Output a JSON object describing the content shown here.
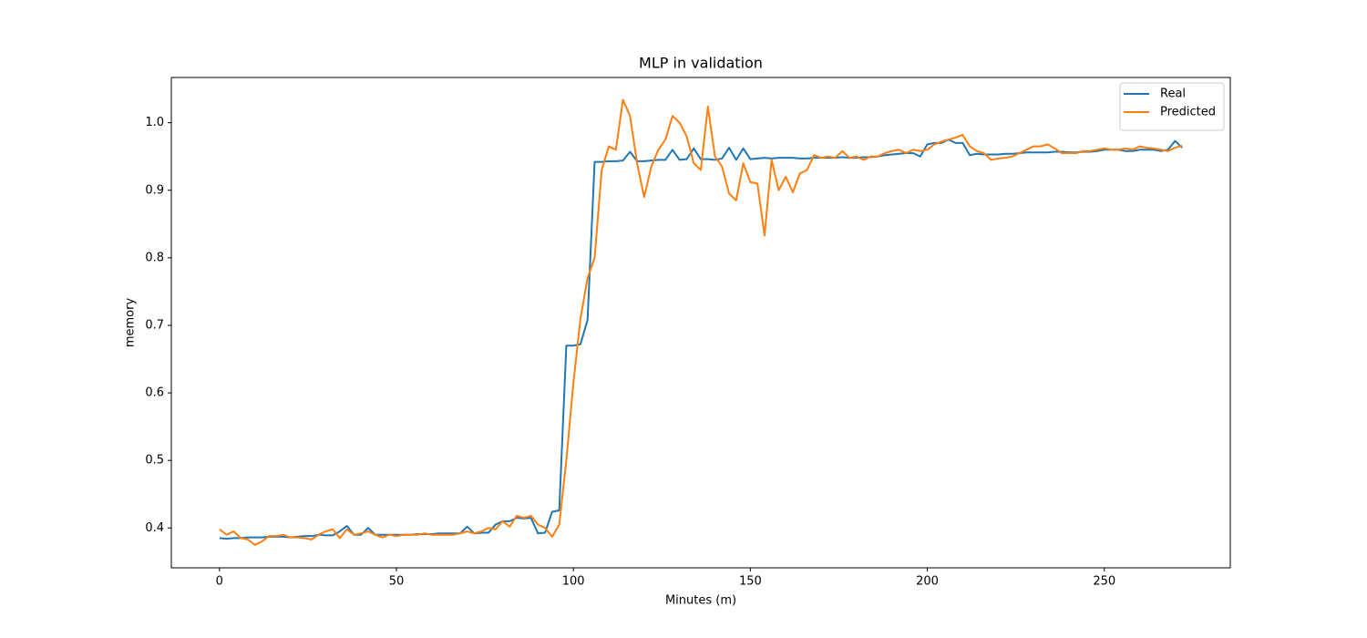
{
  "chart_data": {
    "type": "line",
    "title": "MLP in validation",
    "xlabel": "Minutes (m)",
    "ylabel": "memory",
    "x": [
      0,
      2,
      4,
      6,
      8,
      10,
      12,
      14,
      16,
      18,
      20,
      22,
      24,
      26,
      28,
      30,
      32,
      34,
      36,
      38,
      40,
      42,
      44,
      46,
      48,
      50,
      52,
      54,
      56,
      58,
      60,
      62,
      64,
      66,
      68,
      70,
      72,
      74,
      76,
      78,
      80,
      82,
      84,
      86,
      88,
      90,
      92,
      94,
      96,
      98,
      100,
      102,
      104,
      106,
      108,
      110,
      112,
      114,
      116,
      118,
      120,
      122,
      124,
      126,
      128,
      130,
      132,
      134,
      136,
      138,
      140,
      142,
      144,
      146,
      148,
      150,
      152,
      154,
      156,
      158,
      160,
      162,
      164,
      166,
      168,
      170,
      172,
      174,
      176,
      178,
      180,
      182,
      184,
      186,
      188,
      190,
      192,
      194,
      196,
      198,
      200,
      202,
      204,
      206,
      208,
      210,
      212,
      214,
      216,
      218,
      220,
      222,
      224,
      226,
      228,
      230,
      232,
      234,
      236,
      238,
      240,
      242,
      244,
      246,
      248,
      250,
      252,
      254,
      256,
      258,
      260,
      262,
      264,
      266,
      268,
      270,
      272
    ],
    "series": [
      {
        "name": "Real",
        "color": "#1f77b4",
        "values": [
          0.385,
          0.384,
          0.385,
          0.385,
          0.386,
          0.386,
          0.386,
          0.387,
          0.387,
          0.387,
          0.386,
          0.387,
          0.388,
          0.388,
          0.39,
          0.389,
          0.389,
          0.395,
          0.403,
          0.39,
          0.39,
          0.4,
          0.39,
          0.39,
          0.39,
          0.39,
          0.39,
          0.39,
          0.391,
          0.391,
          0.391,
          0.392,
          0.392,
          0.392,
          0.392,
          0.402,
          0.392,
          0.393,
          0.393,
          0.405,
          0.41,
          0.41,
          0.415,
          0.414,
          0.415,
          0.392,
          0.393,
          0.424,
          0.426,
          0.67,
          0.67,
          0.672,
          0.708,
          0.942,
          0.942,
          0.943,
          0.943,
          0.944,
          0.957,
          0.943,
          0.943,
          0.944,
          0.945,
          0.945,
          0.96,
          0.945,
          0.946,
          0.962,
          0.946,
          0.946,
          0.945,
          0.947,
          0.963,
          0.945,
          0.962,
          0.946,
          0.947,
          0.948,
          0.947,
          0.948,
          0.948,
          0.948,
          0.947,
          0.947,
          0.948,
          0.948,
          0.948,
          0.948,
          0.949,
          0.948,
          0.948,
          0.949,
          0.949,
          0.95,
          0.952,
          0.953,
          0.954,
          0.955,
          0.955,
          0.95,
          0.968,
          0.97,
          0.97,
          0.975,
          0.97,
          0.97,
          0.952,
          0.954,
          0.953,
          0.953,
          0.953,
          0.954,
          0.954,
          0.955,
          0.956,
          0.956,
          0.956,
          0.956,
          0.957,
          0.957,
          0.956,
          0.956,
          0.957,
          0.957,
          0.958,
          0.96,
          0.96,
          0.96,
          0.958,
          0.958,
          0.96,
          0.96,
          0.96,
          0.958,
          0.96,
          0.973,
          0.963
        ]
      },
      {
        "name": "Predicted",
        "color": "#ff7f0e",
        "values": [
          0.398,
          0.39,
          0.395,
          0.385,
          0.383,
          0.375,
          0.38,
          0.388,
          0.388,
          0.39,
          0.386,
          0.386,
          0.385,
          0.383,
          0.39,
          0.395,
          0.398,
          0.385,
          0.398,
          0.39,
          0.392,
          0.395,
          0.39,
          0.386,
          0.39,
          0.388,
          0.39,
          0.39,
          0.39,
          0.392,
          0.39,
          0.39,
          0.39,
          0.39,
          0.392,
          0.395,
          0.392,
          0.395,
          0.4,
          0.398,
          0.41,
          0.402,
          0.418,
          0.415,
          0.418,
          0.405,
          0.4,
          0.387,
          0.405,
          0.5,
          0.615,
          0.71,
          0.77,
          0.8,
          0.93,
          0.965,
          0.96,
          1.034,
          1.01,
          0.94,
          0.89,
          0.935,
          0.96,
          0.975,
          1.01,
          1.0,
          0.98,
          0.94,
          0.93,
          1.024,
          0.95,
          0.935,
          0.895,
          0.885,
          0.94,
          0.912,
          0.91,
          0.833,
          0.945,
          0.9,
          0.92,
          0.897,
          0.925,
          0.93,
          0.952,
          0.948,
          0.95,
          0.948,
          0.958,
          0.948,
          0.95,
          0.945,
          0.95,
          0.95,
          0.955,
          0.958,
          0.96,
          0.955,
          0.96,
          0.958,
          0.96,
          0.968,
          0.972,
          0.975,
          0.978,
          0.982,
          0.965,
          0.958,
          0.955,
          0.945,
          0.947,
          0.948,
          0.95,
          0.955,
          0.96,
          0.965,
          0.965,
          0.968,
          0.962,
          0.955,
          0.955,
          0.955,
          0.958,
          0.958,
          0.96,
          0.962,
          0.96,
          0.96,
          0.962,
          0.96,
          0.965,
          0.963,
          0.962,
          0.96,
          0.958,
          0.963,
          0.966
        ]
      }
    ],
    "xlim": [
      -13.6,
      285.6
    ],
    "ylim": [
      0.341,
      1.067
    ],
    "xticks": [
      0,
      50,
      100,
      150,
      200,
      250
    ],
    "yticks": [
      0.4,
      0.5,
      0.6,
      0.7,
      0.8,
      0.9,
      {
        "value": 1,
        "label": "1.0"
      }
    ],
    "legend": "upper right"
  }
}
